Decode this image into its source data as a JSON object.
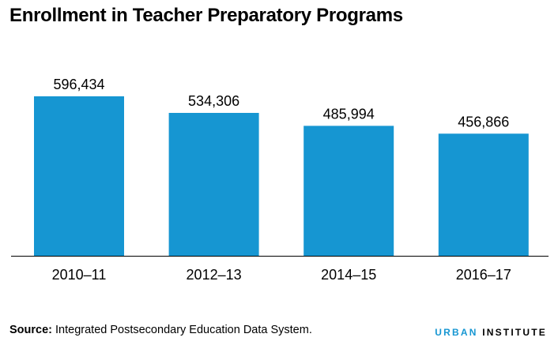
{
  "chart_data": {
    "type": "bar",
    "title": "Enrollment in Teacher Preparatory Programs",
    "categories": [
      "2010–11",
      "2012–13",
      "2014–15",
      "2016–17"
    ],
    "values": [
      596434,
      534306,
      485994,
      456866
    ],
    "value_labels": [
      "596,434",
      "534,306",
      "485,994",
      "456,866"
    ],
    "xlabel": "",
    "ylabel": "",
    "ylim": [
      0,
      596434
    ],
    "grid": false,
    "legend": "none",
    "bar_color": "#1696d2"
  },
  "footer": {
    "source_label": "Source:",
    "source_text": " Integrated Postsecondary Education Data System."
  },
  "logo": {
    "part1": "URBAN",
    "part2": "INSTITUTE",
    "accent_color": "#1696d2"
  }
}
